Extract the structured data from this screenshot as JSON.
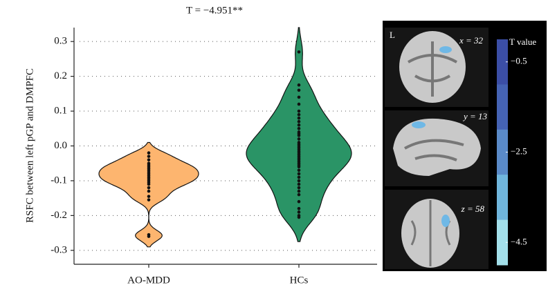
{
  "chart_data": {
    "type": "violin",
    "title": "T = −4.951**",
    "y_label": "RSFC between left pGP and DMPFC",
    "categories": [
      "AO-MDD",
      "HCs"
    ],
    "colors": [
      "#fdb56f",
      "#2a9466"
    ],
    "points": [
      [
        -0.02,
        -0.03,
        -0.04,
        -0.05,
        -0.055,
        -0.06,
        -0.065,
        -0.07,
        -0.075,
        -0.08,
        -0.085,
        -0.09,
        -0.095,
        -0.1,
        -0.105,
        -0.11,
        -0.12,
        -0.13,
        -0.145,
        -0.155,
        -0.255,
        -0.26
      ],
      [
        0.27,
        0.175,
        0.16,
        0.14,
        0.12,
        0.1,
        0.09,
        0.08,
        0.07,
        0.06,
        0.05,
        0.04,
        0.035,
        0.03,
        0.02,
        0.01,
        0.005,
        0,
        -0.005,
        -0.01,
        -0.015,
        -0.02,
        -0.025,
        -0.03,
        -0.035,
        -0.04,
        -0.045,
        -0.05,
        -0.055,
        -0.06,
        -0.07,
        -0.08,
        -0.09,
        -0.1,
        -0.11,
        -0.12,
        -0.13,
        -0.14,
        -0.16,
        -0.18,
        -0.19,
        -0.2,
        -0.205
      ]
    ],
    "ylim": [
      -0.34,
      0.34
    ],
    "yticks": [
      0.3,
      0.2,
      0.1,
      {
        "value": 0,
        "label": "0.0"
      },
      -0.1,
      -0.2,
      -0.3
    ],
    "grid": true
  },
  "brain_panel": {
    "hemisphere": "L",
    "slices": [
      "x = 32",
      "y = 13",
      "z = 58"
    ],
    "colorbar": {
      "label": "T value",
      "lim": [
        0,
        -5
      ],
      "ticks": [
        {
          "value": -0.5,
          "label": "−0.5"
        },
        {
          "value": -2.5,
          "label": "−2.5"
        },
        {
          "value": -4.5,
          "label": "−4.5"
        }
      ],
      "colors": [
        "#3b4ea6",
        "#4563b4",
        "#5a8ac8",
        "#70b6dd",
        "#a3dfea"
      ]
    }
  }
}
